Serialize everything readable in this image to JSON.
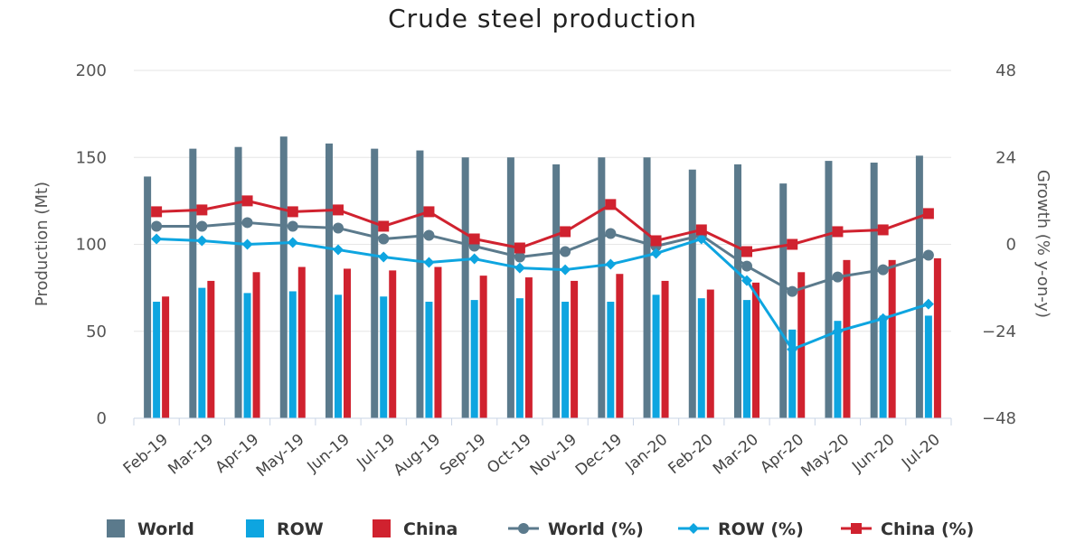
{
  "chart_data": {
    "type": "bar",
    "title": "Crude steel production",
    "xlabel": "",
    "ylabel": "Production (Mt)",
    "y2label": "Growth (% y-on-y)",
    "ylim": [
      0,
      200
    ],
    "y2lim": [
      -48,
      48
    ],
    "yticks": [
      "0",
      "50",
      "100",
      "150",
      "200"
    ],
    "y2ticks": [
      "−48",
      "−24",
      "0",
      "24",
      "48"
    ],
    "categories": [
      "Feb-19",
      "Mar-19",
      "Apr-19",
      "May-19",
      "Jun-19",
      "Jul-19",
      "Aug-19",
      "Sep-19",
      "Oct-19",
      "Nov-19",
      "Dec-19",
      "Jan-20",
      "Feb-20",
      "Mar-20",
      "Apr-20",
      "May-20",
      "Jun-20",
      "Jul-20"
    ],
    "bar_series": [
      {
        "name": "World",
        "color": "#5b7a8c",
        "values": [
          139,
          155,
          156,
          162,
          158,
          155,
          154,
          150,
          150,
          146,
          150,
          150,
          143,
          146,
          135,
          148,
          147,
          151
        ]
      },
      {
        "name": "ROW",
        "color": "#0ea5e0",
        "values": [
          67,
          75,
          72,
          73,
          71,
          70,
          67,
          68,
          69,
          67,
          67,
          71,
          69,
          68,
          51,
          56,
          59,
          59
        ]
      },
      {
        "name": "China",
        "color": "#d0222f",
        "values": [
          70,
          79,
          84,
          87,
          86,
          85,
          87,
          82,
          81,
          79,
          83,
          79,
          74,
          78,
          84,
          91,
          91,
          92
        ]
      }
    ],
    "line_series": [
      {
        "name": "World (%)",
        "color": "#5b7a8c",
        "marker": "circle",
        "values": [
          5,
          5,
          6,
          5,
          4.5,
          1.5,
          2.5,
          -0.5,
          -3.5,
          -2,
          3,
          -0.5,
          2.5,
          -6,
          -13,
          -9,
          -7,
          -3
        ]
      },
      {
        "name": "ROW (%)",
        "color": "#0ea5e0",
        "marker": "diamond",
        "values": [
          1.5,
          1,
          0,
          0.5,
          -1.5,
          -3.5,
          -5,
          -4,
          -6.5,
          -7,
          -5.5,
          -2.5,
          1.5,
          -10,
          -29,
          -24,
          -20.5,
          -16.5
        ]
      },
      {
        "name": "China (%)",
        "color": "#d0222f",
        "marker": "square",
        "values": [
          9,
          9.5,
          12,
          9,
          9.5,
          5,
          9,
          1.5,
          -1,
          3.5,
          11,
          1,
          4,
          -2,
          0,
          3.5,
          4,
          8.5
        ]
      }
    ],
    "legend": [
      "World",
      "ROW",
      "China",
      "World (%)",
      "ROW (%)",
      "China (%)"
    ],
    "legend_position": "bottom"
  }
}
